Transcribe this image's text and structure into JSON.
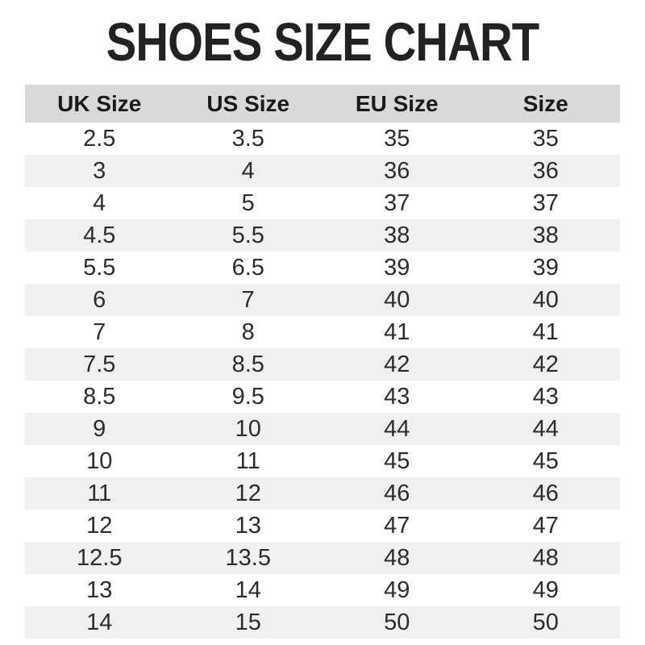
{
  "title": "SHOES SIZE CHART",
  "chart_data": {
    "type": "table",
    "title": "SHOES SIZE CHART",
    "columns": [
      "UK Size",
      "US Size",
      "EU Size",
      "Size"
    ],
    "rows": [
      [
        "2.5",
        "3.5",
        "35",
        "35"
      ],
      [
        "3",
        "4",
        "36",
        "36"
      ],
      [
        "4",
        "5",
        "37",
        "37"
      ],
      [
        "4.5",
        "5.5",
        "38",
        "38"
      ],
      [
        "5.5",
        "6.5",
        "39",
        "39"
      ],
      [
        "6",
        "7",
        "40",
        "40"
      ],
      [
        "7",
        "8",
        "41",
        "41"
      ],
      [
        "7.5",
        "8.5",
        "42",
        "42"
      ],
      [
        "8.5",
        "9.5",
        "43",
        "43"
      ],
      [
        "9",
        "10",
        "44",
        "44"
      ],
      [
        "10",
        "11",
        "45",
        "45"
      ],
      [
        "11",
        "12",
        "46",
        "46"
      ],
      [
        "12",
        "13",
        "47",
        "47"
      ],
      [
        "12.5",
        "13.5",
        "48",
        "48"
      ],
      [
        "13",
        "14",
        "49",
        "49"
      ],
      [
        "14",
        "15",
        "50",
        "50"
      ]
    ],
    "layout": {
      "header_background": "#d9d9d7",
      "alternate_row_background": "#f0f0ef",
      "row_background": "#ffffff",
      "zebra_striping": true
    }
  },
  "colors": {
    "title_text": "#222222",
    "header_background": "#d9d9d7",
    "alternate_row_background": "#f0f0ef",
    "body_text": "#2c2c2c",
    "page_background": "#ffffff"
  }
}
